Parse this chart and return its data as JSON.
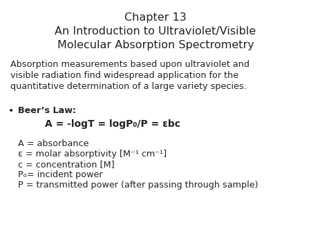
{
  "background_color": "#ffffff",
  "title_line1": "Chapter 13",
  "title_line2": "An Introduction to Ultraviolet/Visible",
  "title_line3": "Molecular Absorption Spectrometry",
  "title_fontsize": 11.5,
  "title_color": "#222222",
  "body_color": "#222222",
  "body_fontsize": 9.2,
  "eq_fontsize": 10.0,
  "para_lines": [
    "Absorption measurements based upon ultraviolet and",
    "visible radiation find widespread application for the",
    "quantitative determination of a large variety species."
  ],
  "bullet_label": "Beer’s Law:",
  "equation": "A = -logT = logP₀/P = εbc",
  "def_lines": [
    "A = absorbance",
    "ε = molar absorptivity [M⁻¹ cm⁻¹]",
    "c = concentration [M]",
    "P₀= incident power",
    "P = transmitted power (after passing through sample)"
  ]
}
